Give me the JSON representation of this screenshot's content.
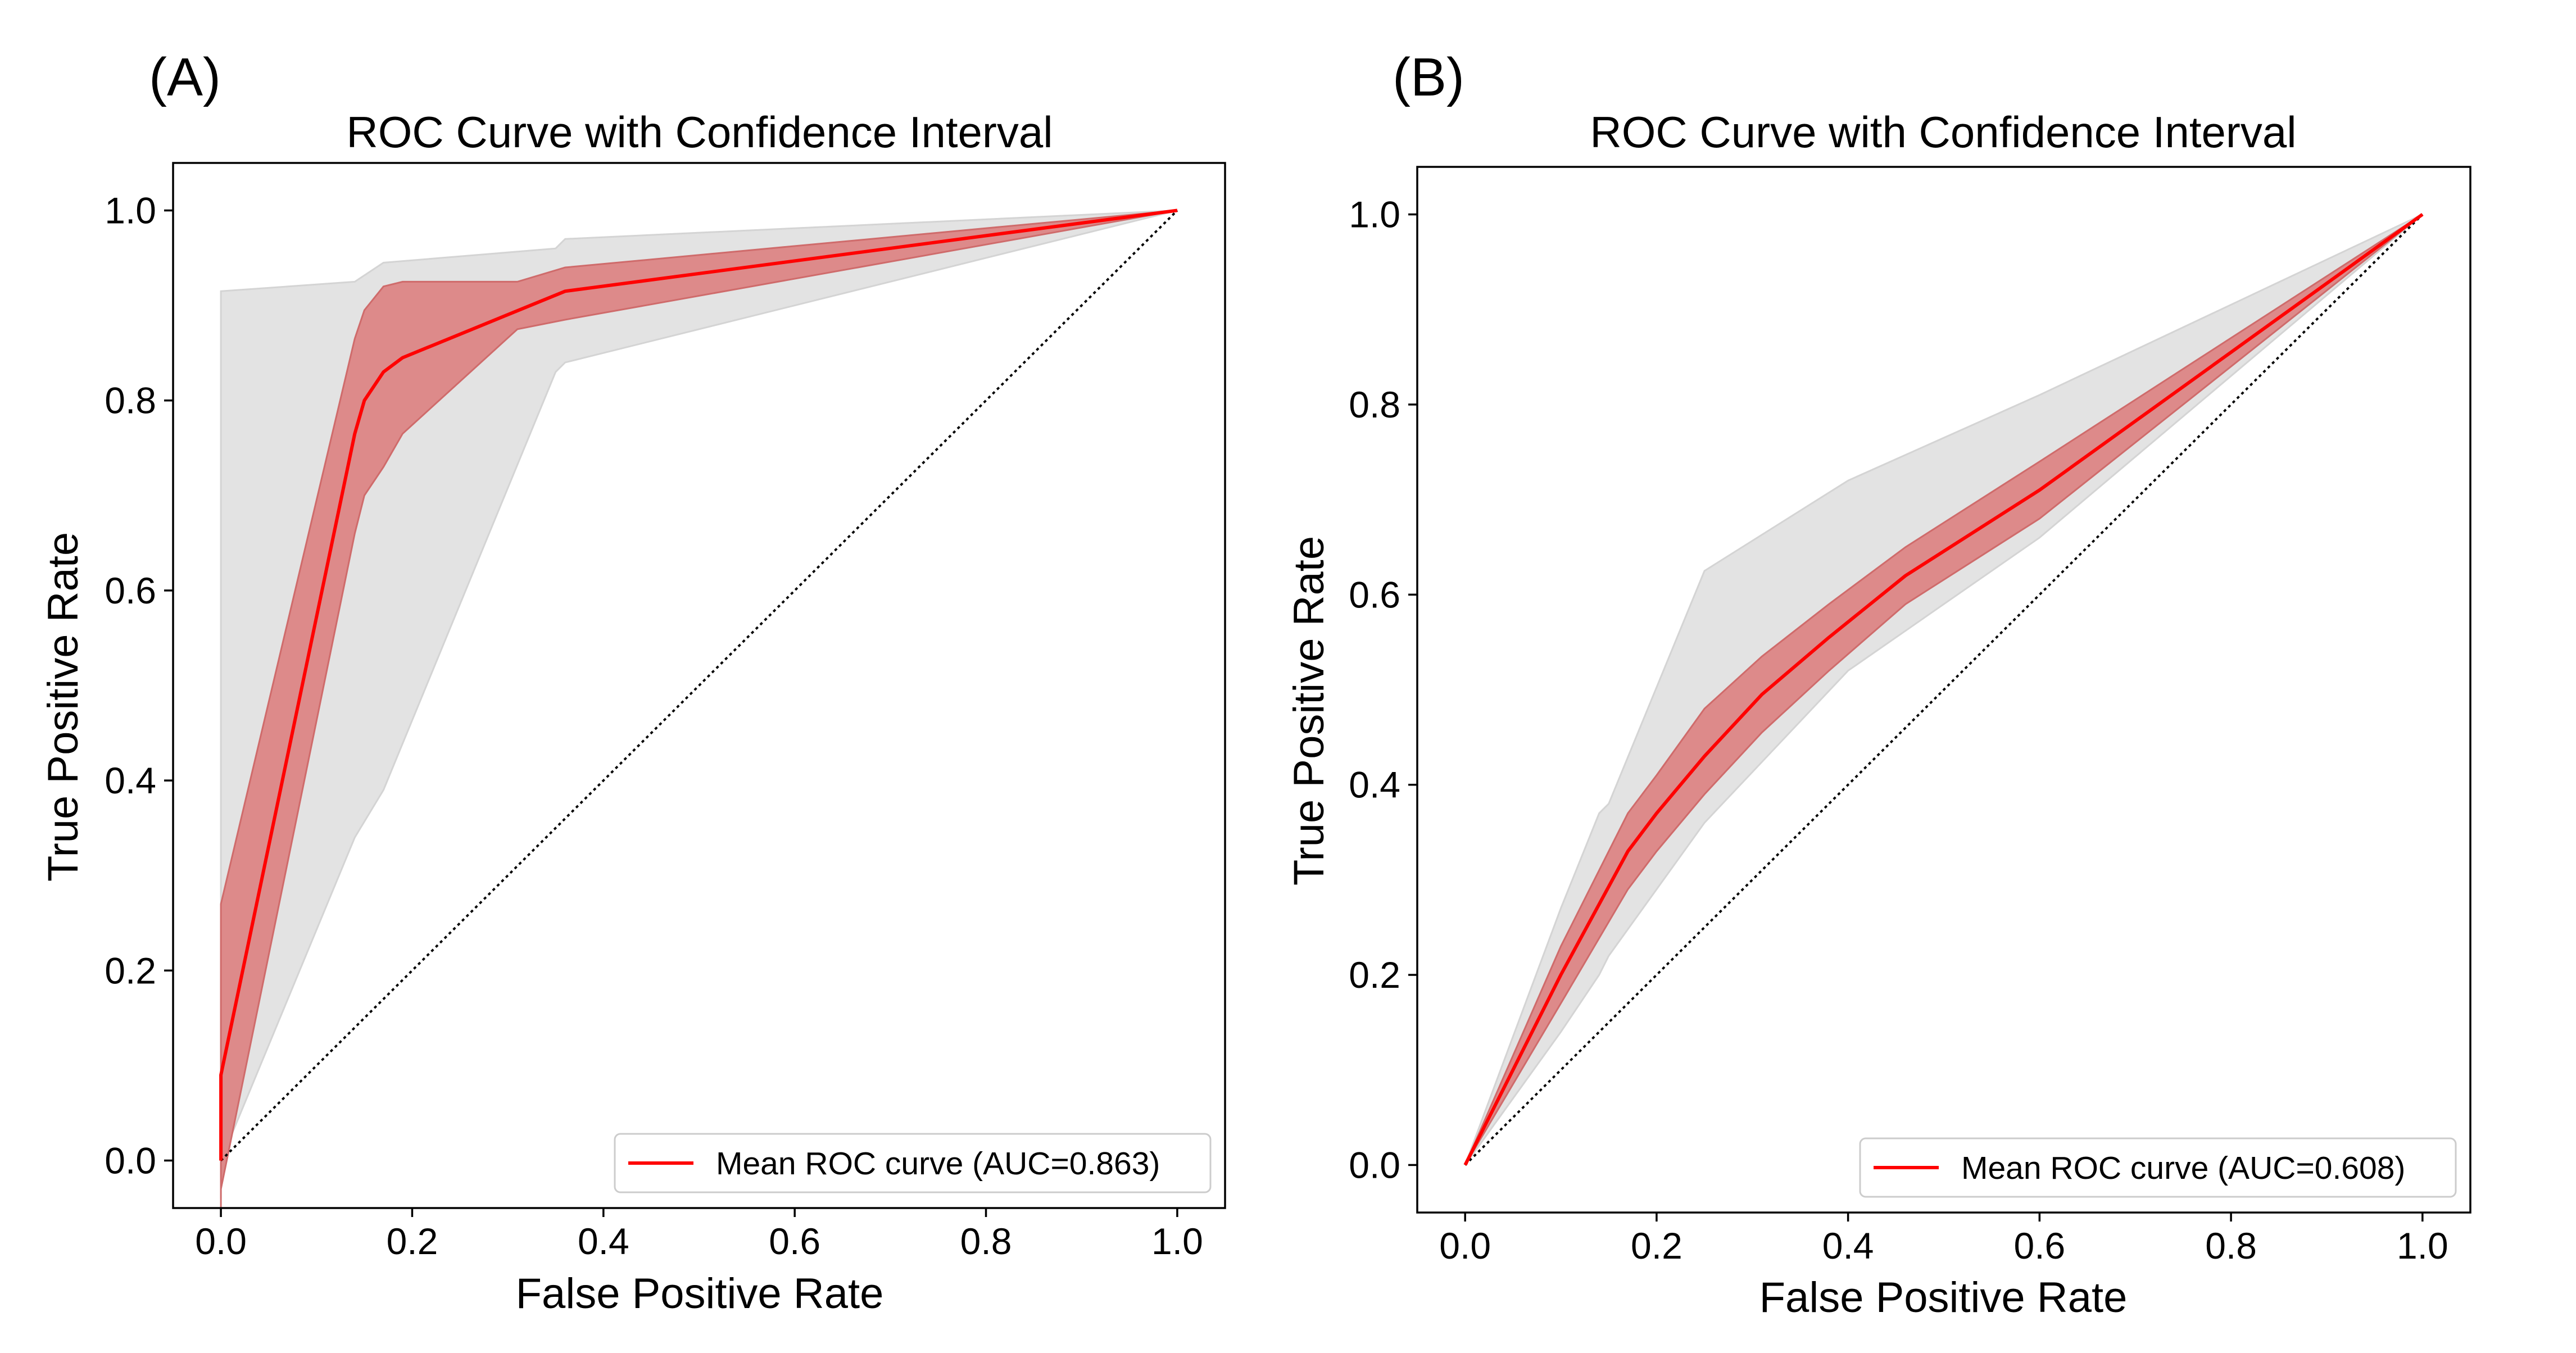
{
  "chart_data": [
    {
      "panel": "(A)",
      "type": "line",
      "title": "ROC Curve with Confidence Interval",
      "xlabel": "False Positive Rate",
      "ylabel": "True Positive Rate",
      "xlim": [
        -0.05,
        1.05
      ],
      "ylim": [
        -0.05,
        1.05
      ],
      "xticks": [
        "0.0",
        "0.2",
        "0.4",
        "0.6",
        "0.8",
        "1.0"
      ],
      "yticks": [
        "0.0",
        "0.2",
        "0.4",
        "0.6",
        "0.8",
        "1.0"
      ],
      "grid": false,
      "legend_position": "lower-right",
      "series": [
        {
          "name": "Mean ROC curve (AUC=0.863)",
          "color": "#ff0000",
          "x": [
            0.0,
            0.0,
            0.14,
            0.15,
            0.17,
            0.19,
            0.36,
            1.0
          ],
          "y": [
            0.0,
            0.09,
            0.765,
            0.8,
            0.83,
            0.845,
            0.915,
            1.0
          ],
          "ci_band": {
            "color": "#dd8a8a",
            "x": [
              0.0,
              0.0,
              0.14,
              0.15,
              0.17,
              0.19,
              0.31,
              0.36,
              1.0
            ],
            "upper": [
              0.0,
              0.27,
              0.865,
              0.895,
              0.92,
              0.925,
              0.925,
              0.94,
              1.0
            ],
            "lower": [
              -0.06,
              -0.03,
              0.66,
              0.7,
              0.73,
              0.765,
              0.875,
              0.885,
              1.0
            ]
          },
          "range_band": {
            "color": "#e3e3e3",
            "x": [
              0.0,
              0.0,
              0.14,
              0.17,
              0.35,
              0.36,
              1.0
            ],
            "upper": [
              0.0,
              0.915,
              0.925,
              0.945,
              0.96,
              0.97,
              1.0
            ],
            "lower": [
              -0.04,
              0.0,
              0.34,
              0.39,
              0.83,
              0.84,
              1.0
            ]
          }
        }
      ],
      "reference_line": {
        "x": [
          0.0,
          1.0
        ],
        "y": [
          0.0,
          1.0
        ],
        "style": "dotted",
        "color": "#000000"
      }
    },
    {
      "panel": "(B)",
      "type": "line",
      "title": "ROC Curve with Confidence Interval",
      "xlabel": "False Positive Rate",
      "ylabel": "True Positive Rate",
      "xlim": [
        -0.05,
        1.05
      ],
      "ylim": [
        -0.05,
        1.05
      ],
      "xticks": [
        "0.0",
        "0.2",
        "0.4",
        "0.6",
        "0.8",
        "1.0"
      ],
      "yticks": [
        "0.0",
        "0.2",
        "0.4",
        "0.6",
        "0.8",
        "1.0"
      ],
      "grid": false,
      "legend_position": "lower-right",
      "series": [
        {
          "name": "Mean ROC curve (AUC=0.608)",
          "color": "#ff0000",
          "x": [
            0.0,
            0.1,
            0.17,
            0.2,
            0.25,
            0.31,
            0.38,
            0.46,
            0.6,
            0.8,
            1.0
          ],
          "y": [
            0.0,
            0.2,
            0.33,
            0.37,
            0.43,
            0.495,
            0.555,
            0.62,
            0.71,
            0.855,
            1.0
          ],
          "ci_band": {
            "color": "#dd8a8a",
            "x": [
              0.0,
              0.1,
              0.17,
              0.2,
              0.25,
              0.31,
              0.38,
              0.46,
              0.6,
              0.8,
              1.0
            ],
            "upper": [
              0.0,
              0.23,
              0.37,
              0.41,
              0.48,
              0.535,
              0.59,
              0.65,
              0.74,
              0.87,
              1.0
            ],
            "lower": [
              0.0,
              0.17,
              0.29,
              0.33,
              0.39,
              0.455,
              0.52,
              0.59,
              0.68,
              0.84,
              1.0
            ]
          },
          "range_band": {
            "color": "#e3e3e3",
            "x": [
              0.0,
              0.1,
              0.14,
              0.15,
              0.25,
              0.4,
              0.6,
              0.8,
              1.0
            ],
            "upper": [
              0.0,
              0.27,
              0.37,
              0.38,
              0.625,
              0.72,
              0.81,
              0.905,
              1.0
            ],
            "lower": [
              0.0,
              0.14,
              0.2,
              0.22,
              0.36,
              0.52,
              0.66,
              0.83,
              1.0
            ]
          }
        }
      ],
      "reference_line": {
        "x": [
          0.0,
          1.0
        ],
        "y": [
          0.0,
          1.0
        ],
        "style": "dotted",
        "color": "#000000"
      }
    }
  ]
}
